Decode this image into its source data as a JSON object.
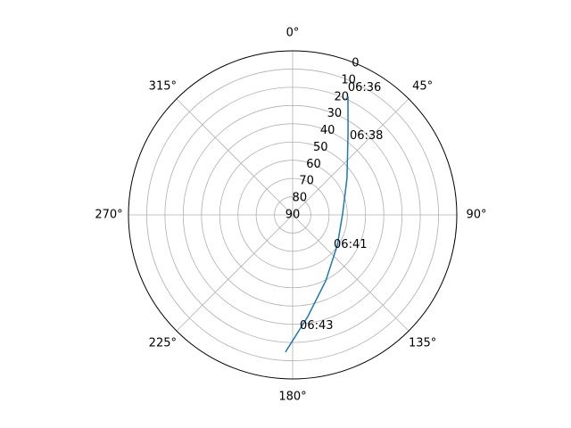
{
  "chart_data": {
    "type": "polar-line",
    "x": [
      25.0,
      34.3,
      56.1,
      89.0,
      124.2,
      153.4,
      171.5,
      183.0
    ],
    "series": [
      {
        "color": "#1f77b4",
        "values": [
          18.2,
          36.1,
          54.1,
          62.6,
          60.4,
          49.5,
          33.6,
          14.6
        ]
      }
    ],
    "rlim": [
      90,
      0
    ],
    "rticks": [
      0,
      10,
      20,
      30,
      40,
      50,
      60,
      70,
      80,
      90
    ],
    "thetaticks": [
      {
        "value": 0,
        "label": "0°"
      },
      {
        "value": 45,
        "label": "45°"
      },
      {
        "value": 90,
        "label": "90°"
      },
      {
        "value": 135,
        "label": "135°"
      },
      {
        "value": 180,
        "label": "180°"
      },
      {
        "value": 225,
        "label": "225°"
      },
      {
        "value": 270,
        "label": "270°"
      },
      {
        "value": 315,
        "label": "315°"
      }
    ],
    "annotations": [
      {
        "text": "06:36",
        "x": 24.0,
        "y": 15.6
      },
      {
        "text": "06:38",
        "x": 37.0,
        "y": 38.0
      },
      {
        "text": "06:41",
        "x": 128.8,
        "y": 61.1
      },
      {
        "text": "06:43",
        "x": 176.4,
        "y": 27.3
      }
    ],
    "grid": true
  }
}
